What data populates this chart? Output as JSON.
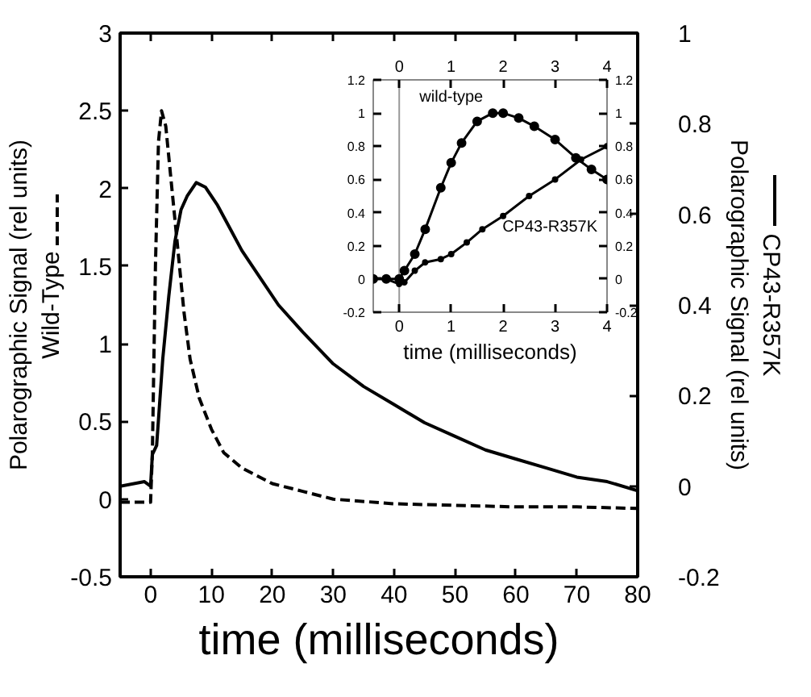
{
  "chart_data": [
    {
      "type": "line",
      "xlabel": "time (milliseconds)",
      "ylabel": "Polarographic Signal (rel units)",
      "y2label": "Polarographic Signal (rel units)",
      "xlim": [
        -5,
        80
      ],
      "xticks": [
        0,
        10,
        20,
        30,
        40,
        50,
        60,
        70,
        80
      ],
      "ylim": [
        -0.5,
        3
      ],
      "yticks": [
        -0.5,
        0,
        0.5,
        1,
        1.5,
        2,
        2.5,
        3
      ],
      "y2lim": [
        -0.2,
        1
      ],
      "y2ticks": [
        -0.2,
        0,
        0.2,
        0.4,
        0.6,
        0.8,
        1
      ],
      "grid": false,
      "legend": "top right",
      "series": [
        {
          "name": "Wild-Type",
          "color": "#000000",
          "line_style": "dashed",
          "x": [
            -5,
            0,
            0.3,
            0.8,
            1.3,
            1.8,
            2.5,
            3.5,
            4.5,
            5.5,
            6.5,
            8,
            10,
            12,
            15,
            20,
            25,
            30,
            40,
            50,
            60,
            70,
            80
          ],
          "values": [
            -0.02,
            -0.02,
            0.3,
            1.5,
            2.3,
            2.5,
            2.4,
            2.0,
            1.6,
            1.2,
            0.9,
            0.65,
            0.45,
            0.3,
            0.2,
            0.1,
            0.05,
            0.0,
            -0.03,
            -0.04,
            -0.05,
            -0.05,
            -0.06
          ]
        },
        {
          "name": "CP43-R357K",
          "color": "#000000",
          "line_style": "solid",
          "axis": "y2",
          "x": [
            -5,
            -1,
            0,
            0.3,
            1,
            2,
            3,
            4,
            5,
            6,
            7.5,
            9,
            11,
            13,
            15,
            18,
            21,
            25,
            30,
            35,
            40,
            45,
            50,
            55,
            60,
            65,
            70,
            75,
            80
          ],
          "values": [
            0.0,
            0.01,
            0.0,
            0.07,
            0.09,
            0.28,
            0.42,
            0.54,
            0.61,
            0.64,
            0.67,
            0.66,
            0.62,
            0.57,
            0.52,
            0.46,
            0.4,
            0.34,
            0.27,
            0.22,
            0.18,
            0.14,
            0.11,
            0.08,
            0.06,
            0.04,
            0.02,
            0.01,
            -0.01
          ]
        }
      ]
    },
    {
      "type": "line",
      "xlabel": "time (milliseconds)",
      "xlim": [
        -0.5,
        4
      ],
      "xticks": [
        0,
        1,
        2,
        3,
        4
      ],
      "x2lim": [
        -0.5,
        4
      ],
      "x2ticks": [
        0,
        1,
        2,
        3,
        4
      ],
      "ylim": [
        -0.2,
        1.2
      ],
      "yticks": [
        -0.2,
        0,
        0.2,
        0.4,
        0.6,
        0.8,
        1,
        1.2
      ],
      "y2lim": [
        -0.2,
        1.2
      ],
      "y2ticks": [
        -0.2,
        0,
        0.2,
        0.4,
        0.6,
        0.8,
        1,
        1.2
      ],
      "grid": false,
      "marker": "circle",
      "ref_lines": [
        {
          "axis": "x",
          "value": 0,
          "color": "#999999"
        }
      ],
      "series": [
        {
          "name": "wild-type",
          "color": "#000000",
          "x": [
            -0.5,
            -0.25,
            0,
            0.1,
            0.3,
            0.5,
            0.8,
            1.0,
            1.2,
            1.5,
            1.8,
            2.0,
            2.3,
            2.6,
            3.0,
            3.4,
            3.7,
            4.0
          ],
          "values": [
            0,
            0,
            0,
            0.05,
            0.15,
            0.3,
            0.55,
            0.7,
            0.82,
            0.95,
            1.0,
            1.0,
            0.97,
            0.92,
            0.84,
            0.73,
            0.66,
            0.6
          ]
        },
        {
          "name": "CP43-R357K",
          "color": "#000000",
          "x": [
            -0.5,
            -0.25,
            0,
            0.1,
            0.3,
            0.5,
            0.8,
            1.0,
            1.3,
            1.6,
            2.0,
            2.5,
            3.0,
            3.5,
            4.0
          ],
          "values": [
            0,
            0,
            -0.03,
            -0.02,
            0.05,
            0.1,
            0.12,
            0.15,
            0.22,
            0.3,
            0.38,
            0.5,
            0.6,
            0.72,
            0.8
          ]
        }
      ]
    }
  ]
}
